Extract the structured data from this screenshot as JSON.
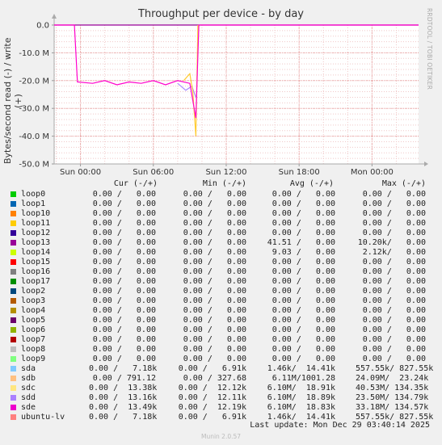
{
  "chart_data": {
    "type": "line",
    "title": "Throughput per device - by day",
    "ylabel": "Bytes/second read (-) / write (+)",
    "side_label": "RRDTOOL / TOBI OETIKER",
    "ylim": [
      -50000000,
      0
    ],
    "yticks": [
      {
        "value": 0,
        "label": "0.0"
      },
      {
        "value": -10000000,
        "label": "-10.0 M"
      },
      {
        "value": -20000000,
        "label": "-20.0 M"
      },
      {
        "value": -30000000,
        "label": "-30.0 M"
      },
      {
        "value": -40000000,
        "label": "-40.0 M"
      },
      {
        "value": -50000000,
        "label": "-50.0 M"
      }
    ],
    "xlim": [
      "2025-12-27T21:50",
      "2025-12-29T03:50"
    ],
    "xticks": [
      {
        "value": "2025-12-28T00:00",
        "label": "Sun 00:00"
      },
      {
        "value": "2025-12-28T06:00",
        "label": "Sun 06:00"
      },
      {
        "value": "2025-12-28T12:00",
        "label": "Sun 12:00"
      },
      {
        "value": "2025-12-28T18:00",
        "label": "Sun 18:00"
      },
      {
        "value": "2025-12-29T00:00",
        "label": "Mon 00:00"
      }
    ],
    "grid": true,
    "series": [
      {
        "name": "sde",
        "color": "#ff00cc",
        "points": [
          [
            "2025-12-27T21:50",
            0
          ],
          [
            "2025-12-27T23:30",
            0
          ],
          [
            "2025-12-27T23:45",
            -20500000
          ],
          [
            "2025-12-28T01:00",
            -21000000
          ],
          [
            "2025-12-28T02:00",
            -20000000
          ],
          [
            "2025-12-28T03:00",
            -21500000
          ],
          [
            "2025-12-28T04:00",
            -20500000
          ],
          [
            "2025-12-28T05:00",
            -21000000
          ],
          [
            "2025-12-28T06:00",
            -20000000
          ],
          [
            "2025-12-28T07:00",
            -21500000
          ],
          [
            "2025-12-28T08:00",
            -20000000
          ],
          [
            "2025-12-28T09:00",
            -21000000
          ],
          [
            "2025-12-28T09:30",
            -33500000
          ],
          [
            "2025-12-28T09:45",
            0
          ],
          [
            "2025-12-29T03:50",
            0
          ]
        ]
      },
      {
        "name": "sdc",
        "color": "#ffcc33",
        "points": [
          [
            "2025-12-28T08:30",
            -20000000
          ],
          [
            "2025-12-28T09:00",
            -17500000
          ],
          [
            "2025-12-28T09:15",
            -24000000
          ],
          [
            "2025-12-28T09:30",
            -40000000
          ],
          [
            "2025-12-28T09:40",
            0
          ]
        ]
      },
      {
        "name": "sdd",
        "color": "#aa88ff",
        "points": [
          [
            "2025-12-28T08:00",
            -21000000
          ],
          [
            "2025-12-28T08:40",
            -23500000
          ],
          [
            "2025-12-28T09:10",
            -22000000
          ],
          [
            "2025-12-28T09:30",
            -26000000
          ]
        ]
      },
      {
        "name": "loop13",
        "color": "#990099",
        "points": [
          [
            "2025-12-27T21:50",
            0
          ],
          [
            "2025-12-29T03:50",
            0
          ]
        ]
      }
    ]
  },
  "legend": {
    "header": {
      "cur": "Cur (-/+)",
      "min": "Min (-/+)",
      "avg": "Avg (-/+)",
      "max": "Max (-/+)"
    },
    "rows": [
      {
        "name": "loop0",
        "color": "#00cc00",
        "cur": "0.00 /   0.00",
        "min": "0.00 /   0.00",
        "avg": "0.00 /   0.00",
        "max": "0.00 /   0.00"
      },
      {
        "name": "loop1",
        "color": "#0066b3",
        "cur": "0.00 /   0.00",
        "min": "0.00 /   0.00",
        "avg": "0.00 /   0.00",
        "max": "0.00 /   0.00"
      },
      {
        "name": "loop10",
        "color": "#ff8000",
        "cur": "0.00 /   0.00",
        "min": "0.00 /   0.00",
        "avg": "0.00 /   0.00",
        "max": "0.00 /   0.00"
      },
      {
        "name": "loop11",
        "color": "#ffcc00",
        "cur": "0.00 /   0.00",
        "min": "0.00 /   0.00",
        "avg": "0.00 /   0.00",
        "max": "0.00 /   0.00"
      },
      {
        "name": "loop12",
        "color": "#330099",
        "cur": "0.00 /   0.00",
        "min": "0.00 /   0.00",
        "avg": "0.00 /   0.00",
        "max": "0.00 /   0.00"
      },
      {
        "name": "loop13",
        "color": "#990099",
        "cur": "0.00 /   0.00",
        "min": "0.00 /   0.00",
        "avg": "41.51 /   0.00",
        "max": "10.20k/   0.00"
      },
      {
        "name": "loop14",
        "color": "#ccff00",
        "cur": "0.00 /   0.00",
        "min": "0.00 /   0.00",
        "avg": "9.03 /   0.00",
        "max": "2.12k/   0.00"
      },
      {
        "name": "loop15",
        "color": "#ff0000",
        "cur": "0.00 /   0.00",
        "min": "0.00 /   0.00",
        "avg": "0.00 /   0.00",
        "max": "0.00 /   0.00"
      },
      {
        "name": "loop16",
        "color": "#808080",
        "cur": "0.00 /   0.00",
        "min": "0.00 /   0.00",
        "avg": "0.00 /   0.00",
        "max": "0.00 /   0.00"
      },
      {
        "name": "loop17",
        "color": "#008f00",
        "cur": "0.00 /   0.00",
        "min": "0.00 /   0.00",
        "avg": "0.00 /   0.00",
        "max": "0.00 /   0.00"
      },
      {
        "name": "loop2",
        "color": "#00487d",
        "cur": "0.00 /   0.00",
        "min": "0.00 /   0.00",
        "avg": "0.00 /   0.00",
        "max": "0.00 /   0.00"
      },
      {
        "name": "loop3",
        "color": "#b35a00",
        "cur": "0.00 /   0.00",
        "min": "0.00 /   0.00",
        "avg": "0.00 /   0.00",
        "max": "0.00 /   0.00"
      },
      {
        "name": "loop4",
        "color": "#b38f00",
        "cur": "0.00 /   0.00",
        "min": "0.00 /   0.00",
        "avg": "0.00 /   0.00",
        "max": "0.00 /   0.00"
      },
      {
        "name": "loop5",
        "color": "#6b006b",
        "cur": "0.00 /   0.00",
        "min": "0.00 /   0.00",
        "avg": "0.00 /   0.00",
        "max": "0.00 /   0.00"
      },
      {
        "name": "loop6",
        "color": "#8fb300",
        "cur": "0.00 /   0.00",
        "min": "0.00 /   0.00",
        "avg": "0.00 /   0.00",
        "max": "0.00 /   0.00"
      },
      {
        "name": "loop7",
        "color": "#b30000",
        "cur": "0.00 /   0.00",
        "min": "0.00 /   0.00",
        "avg": "0.00 /   0.00",
        "max": "0.00 /   0.00"
      },
      {
        "name": "loop8",
        "color": "#bebebe",
        "cur": "0.00 /   0.00",
        "min": "0.00 /   0.00",
        "avg": "0.00 /   0.00",
        "max": "0.00 /   0.00"
      },
      {
        "name": "loop9",
        "color": "#80ff80",
        "cur": "0.00 /   0.00",
        "min": "0.00 /   0.00",
        "avg": "0.00 /   0.00",
        "max": "0.00 /   0.00"
      },
      {
        "name": "sda",
        "color": "#80c9ff",
        "cur": "0.00 /   7.18k",
        "min": "0.00 /   6.91k",
        "avg": "1.46k/  14.41k",
        "max": "557.55k/ 827.55k"
      },
      {
        "name": "sdb",
        "color": "#ffc080",
        "cur": "0.00 / 791.12",
        "min": "0.00 / 327.68",
        "avg": "6.11M/1001.28",
        "max": "24.09M/  23.24k"
      },
      {
        "name": "sdc",
        "color": "#ffe680",
        "cur": "0.00 /  13.38k",
        "min": "0.00 /  12.12k",
        "avg": "6.10M/  18.91k",
        "max": "40.53M/ 134.35k"
      },
      {
        "name": "sdd",
        "color": "#aa80ff",
        "cur": "0.00 /  13.16k",
        "min": "0.00 /  12.11k",
        "avg": "6.10M/  18.89k",
        "max": "23.50M/ 134.79k"
      },
      {
        "name": "sde",
        "color": "#ee00cc",
        "cur": "0.00 /  13.49k",
        "min": "0.00 /  12.19k",
        "avg": "6.10M/  18.83k",
        "max": "33.18M/ 134.57k"
      },
      {
        "name": "ubuntu-lv",
        "color": "#ff8080",
        "cur": "0.00 /   7.18k",
        "min": "0.00 /   6.91k",
        "avg": "1.46k/  14.41k",
        "max": "557.55k/ 827.55k"
      }
    ]
  },
  "footer": {
    "last_update": "Last update:  Mon Dec 29 03:40:14 2025",
    "munin_version": "Munin 2.0.57"
  }
}
